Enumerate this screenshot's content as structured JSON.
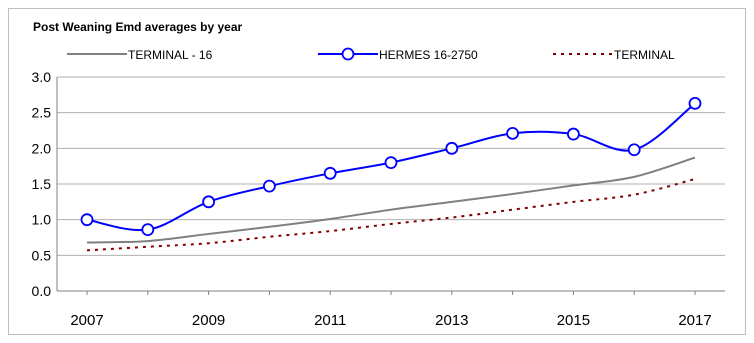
{
  "chart_data": {
    "type": "line",
    "title": "Post Weaning Emd  averages by year",
    "xlabel": "",
    "ylabel": "",
    "x": [
      2007,
      2008,
      2009,
      2010,
      2011,
      2012,
      2013,
      2014,
      2015,
      2016,
      2017
    ],
    "xticks": [
      "2007",
      "2009",
      "2011",
      "2013",
      "2015",
      "2017"
    ],
    "xlim": [
      2007,
      2017
    ],
    "ylim": [
      0,
      3
    ],
    "yticks": [
      "0.0",
      "0.5",
      "1.0",
      "1.5",
      "2.0",
      "2.5",
      "3.0"
    ],
    "grid": "horizontal",
    "legend": "top",
    "series": [
      {
        "name": "TERMINAL - 16",
        "color": "#808080",
        "style": "solid",
        "marker": "none",
        "values": [
          0.68,
          0.7,
          0.8,
          0.9,
          1.01,
          1.14,
          1.25,
          1.36,
          1.48,
          1.6,
          1.87
        ]
      },
      {
        "name": "HERMES 16-2750",
        "color": "#0000ff",
        "style": "solid",
        "marker": "circle",
        "values": [
          1.0,
          0.86,
          1.25,
          1.47,
          1.65,
          1.8,
          2.0,
          2.21,
          2.2,
          1.98,
          2.63
        ]
      },
      {
        "name": "TERMINAL",
        "color": "#800000",
        "style": "dotted",
        "marker": "none",
        "values": [
          0.57,
          0.62,
          0.67,
          0.76,
          0.84,
          0.94,
          1.03,
          1.14,
          1.25,
          1.35,
          1.57
        ]
      }
    ]
  }
}
